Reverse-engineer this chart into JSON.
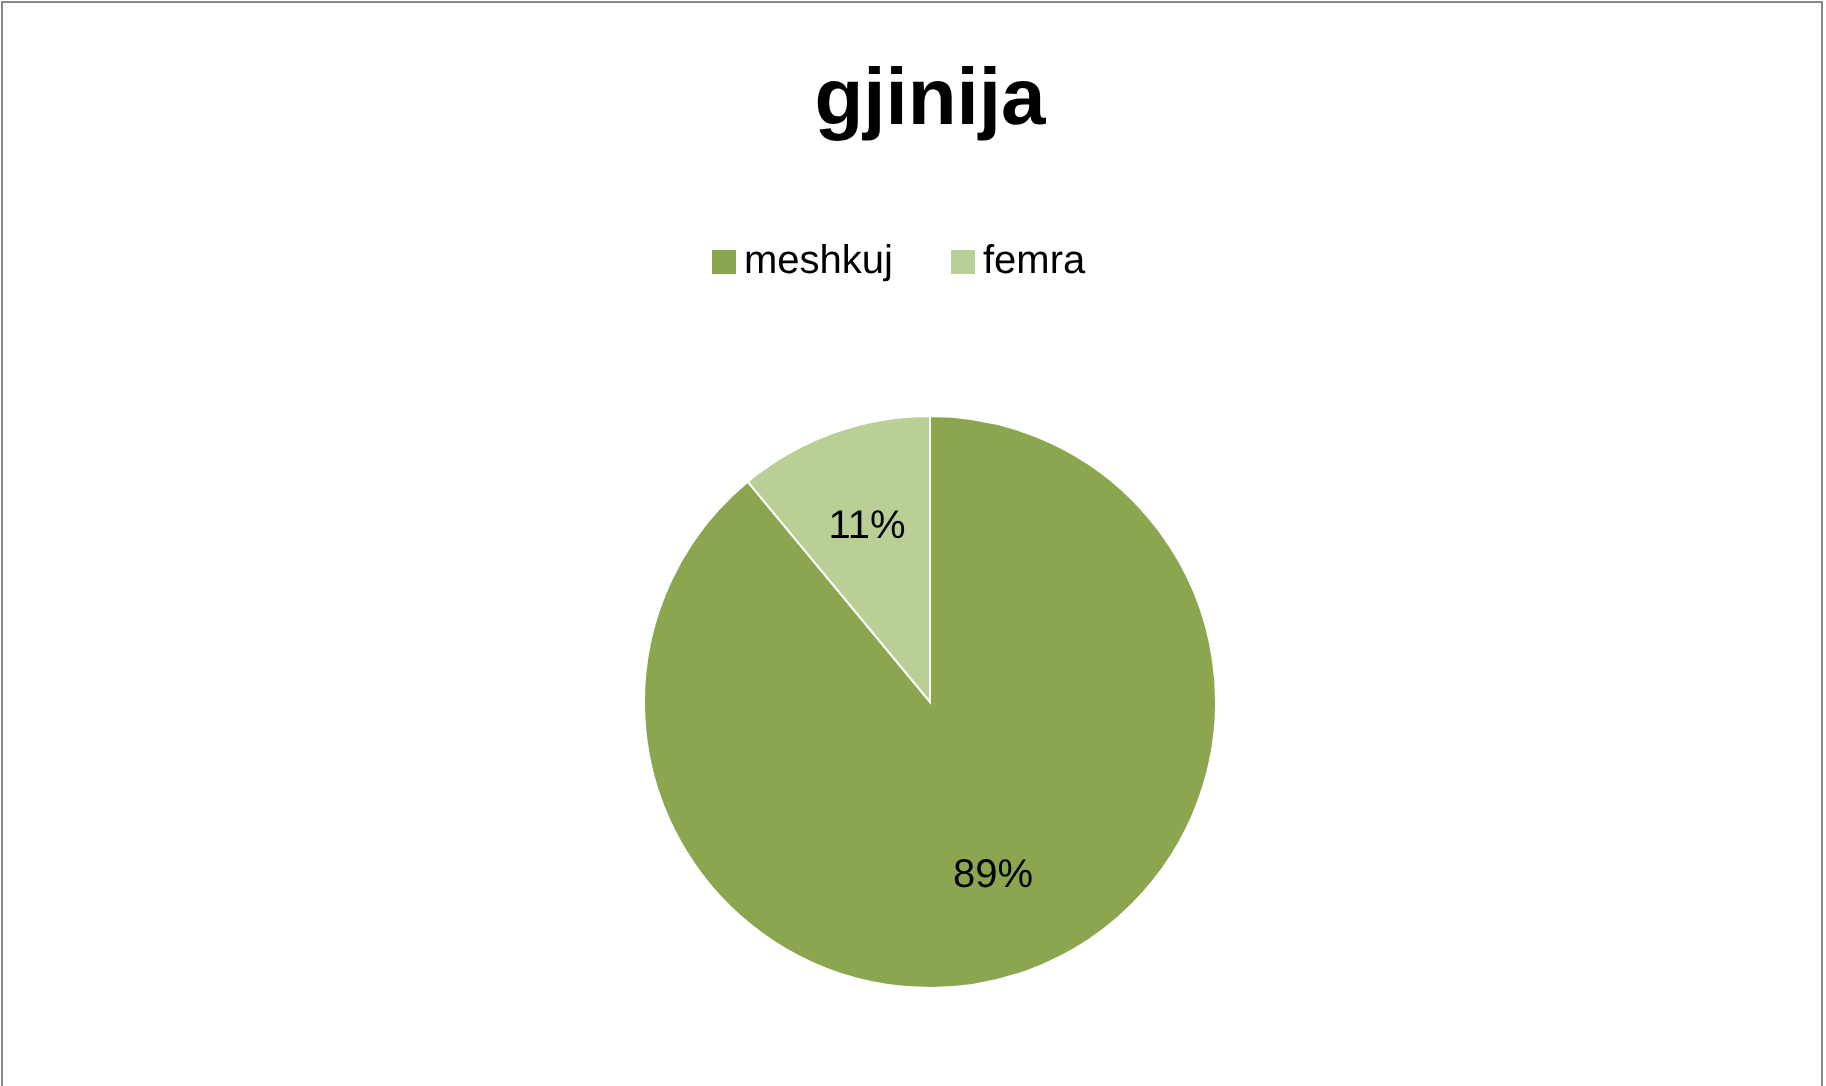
{
  "chart_data": {
    "type": "pie",
    "title": "gjinija",
    "categories": [
      "meshkuj",
      "femra"
    ],
    "values": [
      89,
      11
    ],
    "colors": [
      "#8ba64f",
      "#bacf96"
    ],
    "value_labels": [
      "89%",
      "11%"
    ],
    "legend": "top"
  }
}
